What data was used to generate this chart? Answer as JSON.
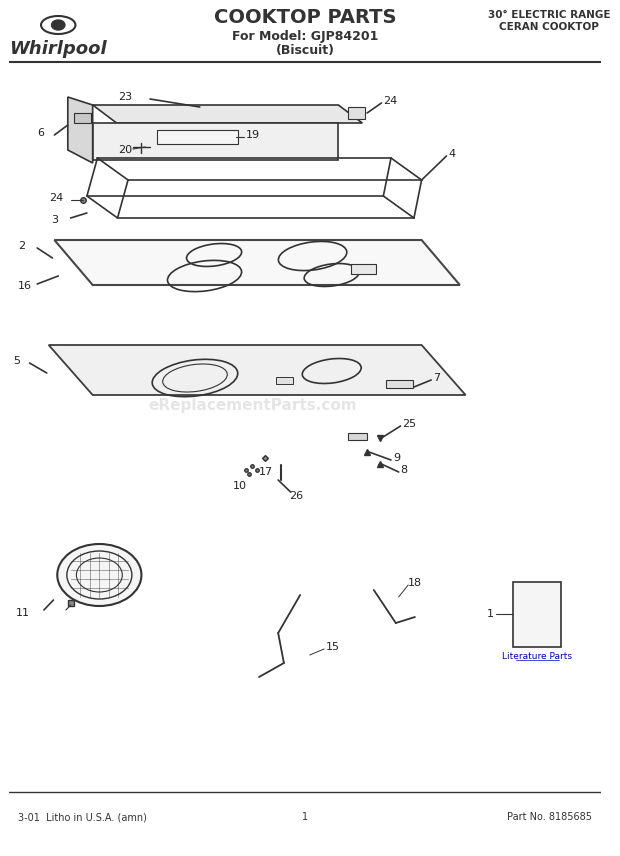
{
  "title": "COOKTOP PARTS",
  "subtitle1": "For Model: GJP84201",
  "subtitle2": "(Biscuit)",
  "right_title1": "30° ELECTRIC RANGE",
  "right_title2": "CERAN COOKTOP",
  "footer_left": "3-01  Litho in U.S.A. (amn)",
  "footer_center": "1",
  "footer_right": "Part No. 8185685",
  "watermark": "eReplacementParts.com",
  "lit_label": "Literature Parts",
  "bg_color": "#ffffff",
  "line_color": "#333333",
  "label_color": "#222222"
}
